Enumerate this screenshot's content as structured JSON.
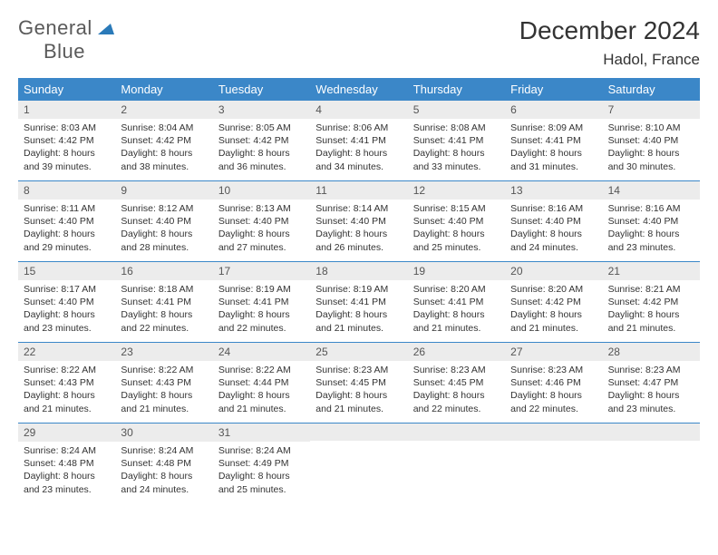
{
  "logo": {
    "word1": "General",
    "word2": "Blue"
  },
  "title": "December 2024",
  "location": "Hadol, France",
  "colors": {
    "header_bg": "#3b87c8",
    "daynum_bg": "#ececec",
    "row_border": "#3b87c8",
    "logo_gray": "#5a5a5a",
    "logo_blue": "#2a7ab9"
  },
  "weekdays": [
    "Sunday",
    "Monday",
    "Tuesday",
    "Wednesday",
    "Thursday",
    "Friday",
    "Saturday"
  ],
  "weeks": [
    [
      {
        "num": "1",
        "sunrise": "Sunrise: 8:03 AM",
        "sunset": "Sunset: 4:42 PM",
        "daylight": "Daylight: 8 hours and 39 minutes."
      },
      {
        "num": "2",
        "sunrise": "Sunrise: 8:04 AM",
        "sunset": "Sunset: 4:42 PM",
        "daylight": "Daylight: 8 hours and 38 minutes."
      },
      {
        "num": "3",
        "sunrise": "Sunrise: 8:05 AM",
        "sunset": "Sunset: 4:42 PM",
        "daylight": "Daylight: 8 hours and 36 minutes."
      },
      {
        "num": "4",
        "sunrise": "Sunrise: 8:06 AM",
        "sunset": "Sunset: 4:41 PM",
        "daylight": "Daylight: 8 hours and 34 minutes."
      },
      {
        "num": "5",
        "sunrise": "Sunrise: 8:08 AM",
        "sunset": "Sunset: 4:41 PM",
        "daylight": "Daylight: 8 hours and 33 minutes."
      },
      {
        "num": "6",
        "sunrise": "Sunrise: 8:09 AM",
        "sunset": "Sunset: 4:41 PM",
        "daylight": "Daylight: 8 hours and 31 minutes."
      },
      {
        "num": "7",
        "sunrise": "Sunrise: 8:10 AM",
        "sunset": "Sunset: 4:40 PM",
        "daylight": "Daylight: 8 hours and 30 minutes."
      }
    ],
    [
      {
        "num": "8",
        "sunrise": "Sunrise: 8:11 AM",
        "sunset": "Sunset: 4:40 PM",
        "daylight": "Daylight: 8 hours and 29 minutes."
      },
      {
        "num": "9",
        "sunrise": "Sunrise: 8:12 AM",
        "sunset": "Sunset: 4:40 PM",
        "daylight": "Daylight: 8 hours and 28 minutes."
      },
      {
        "num": "10",
        "sunrise": "Sunrise: 8:13 AM",
        "sunset": "Sunset: 4:40 PM",
        "daylight": "Daylight: 8 hours and 27 minutes."
      },
      {
        "num": "11",
        "sunrise": "Sunrise: 8:14 AM",
        "sunset": "Sunset: 4:40 PM",
        "daylight": "Daylight: 8 hours and 26 minutes."
      },
      {
        "num": "12",
        "sunrise": "Sunrise: 8:15 AM",
        "sunset": "Sunset: 4:40 PM",
        "daylight": "Daylight: 8 hours and 25 minutes."
      },
      {
        "num": "13",
        "sunrise": "Sunrise: 8:16 AM",
        "sunset": "Sunset: 4:40 PM",
        "daylight": "Daylight: 8 hours and 24 minutes."
      },
      {
        "num": "14",
        "sunrise": "Sunrise: 8:16 AM",
        "sunset": "Sunset: 4:40 PM",
        "daylight": "Daylight: 8 hours and 23 minutes."
      }
    ],
    [
      {
        "num": "15",
        "sunrise": "Sunrise: 8:17 AM",
        "sunset": "Sunset: 4:40 PM",
        "daylight": "Daylight: 8 hours and 23 minutes."
      },
      {
        "num": "16",
        "sunrise": "Sunrise: 8:18 AM",
        "sunset": "Sunset: 4:41 PM",
        "daylight": "Daylight: 8 hours and 22 minutes."
      },
      {
        "num": "17",
        "sunrise": "Sunrise: 8:19 AM",
        "sunset": "Sunset: 4:41 PM",
        "daylight": "Daylight: 8 hours and 22 minutes."
      },
      {
        "num": "18",
        "sunrise": "Sunrise: 8:19 AM",
        "sunset": "Sunset: 4:41 PM",
        "daylight": "Daylight: 8 hours and 21 minutes."
      },
      {
        "num": "19",
        "sunrise": "Sunrise: 8:20 AM",
        "sunset": "Sunset: 4:41 PM",
        "daylight": "Daylight: 8 hours and 21 minutes."
      },
      {
        "num": "20",
        "sunrise": "Sunrise: 8:20 AM",
        "sunset": "Sunset: 4:42 PM",
        "daylight": "Daylight: 8 hours and 21 minutes."
      },
      {
        "num": "21",
        "sunrise": "Sunrise: 8:21 AM",
        "sunset": "Sunset: 4:42 PM",
        "daylight": "Daylight: 8 hours and 21 minutes."
      }
    ],
    [
      {
        "num": "22",
        "sunrise": "Sunrise: 8:22 AM",
        "sunset": "Sunset: 4:43 PM",
        "daylight": "Daylight: 8 hours and 21 minutes."
      },
      {
        "num": "23",
        "sunrise": "Sunrise: 8:22 AM",
        "sunset": "Sunset: 4:43 PM",
        "daylight": "Daylight: 8 hours and 21 minutes."
      },
      {
        "num": "24",
        "sunrise": "Sunrise: 8:22 AM",
        "sunset": "Sunset: 4:44 PM",
        "daylight": "Daylight: 8 hours and 21 minutes."
      },
      {
        "num": "25",
        "sunrise": "Sunrise: 8:23 AM",
        "sunset": "Sunset: 4:45 PM",
        "daylight": "Daylight: 8 hours and 21 minutes."
      },
      {
        "num": "26",
        "sunrise": "Sunrise: 8:23 AM",
        "sunset": "Sunset: 4:45 PM",
        "daylight": "Daylight: 8 hours and 22 minutes."
      },
      {
        "num": "27",
        "sunrise": "Sunrise: 8:23 AM",
        "sunset": "Sunset: 4:46 PM",
        "daylight": "Daylight: 8 hours and 22 minutes."
      },
      {
        "num": "28",
        "sunrise": "Sunrise: 8:23 AM",
        "sunset": "Sunset: 4:47 PM",
        "daylight": "Daylight: 8 hours and 23 minutes."
      }
    ],
    [
      {
        "num": "29",
        "sunrise": "Sunrise: 8:24 AM",
        "sunset": "Sunset: 4:48 PM",
        "daylight": "Daylight: 8 hours and 23 minutes."
      },
      {
        "num": "30",
        "sunrise": "Sunrise: 8:24 AM",
        "sunset": "Sunset: 4:48 PM",
        "daylight": "Daylight: 8 hours and 24 minutes."
      },
      {
        "num": "31",
        "sunrise": "Sunrise: 8:24 AM",
        "sunset": "Sunset: 4:49 PM",
        "daylight": "Daylight: 8 hours and 25 minutes."
      },
      null,
      null,
      null,
      null
    ]
  ]
}
